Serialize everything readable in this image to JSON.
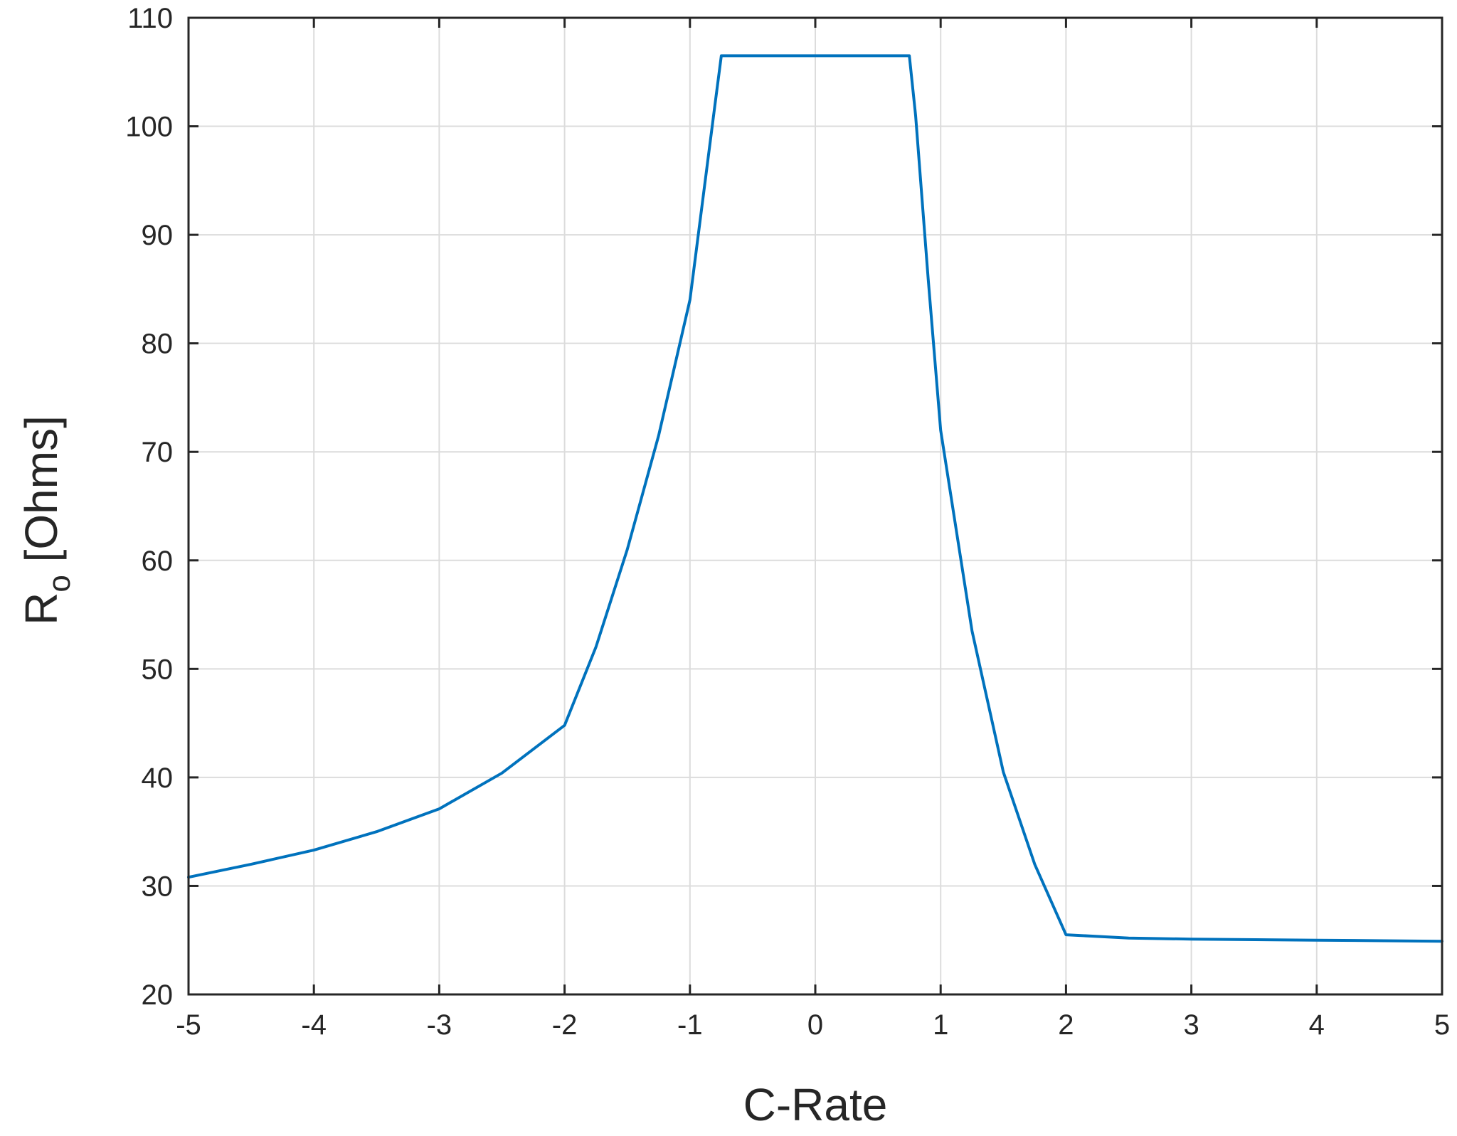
{
  "chart_data": {
    "type": "line",
    "title": "",
    "xlabel": "C-Rate",
    "ylabel": {
      "main": "R",
      "subscript": "o",
      "units": "[Ohms]"
    },
    "xlim": [
      -5,
      5
    ],
    "ylim": [
      20,
      110
    ],
    "xticks": [
      "-5",
      "-4",
      "-3",
      "-2",
      "-1",
      "0",
      "1",
      "2",
      "3",
      "4",
      "5"
    ],
    "yticks": [
      "20",
      "30",
      "40",
      "50",
      "60",
      "70",
      "80",
      "90",
      "100",
      "110"
    ],
    "grid": true,
    "series": [
      {
        "color": "#0072BD",
        "x": [
          -5,
          -4.5,
          -4,
          -3.5,
          -3,
          -2.5,
          -2,
          -1.75,
          -1.5,
          -1.25,
          -1,
          -0.9,
          -0.8,
          -0.75,
          0,
          0.75,
          0.8,
          0.9,
          1,
          1.25,
          1.5,
          1.75,
          2,
          2.5,
          3,
          4,
          5
        ],
        "y": [
          30.8,
          32.0,
          33.3,
          35.0,
          37.1,
          40.4,
          44.8,
          52.0,
          61.0,
          71.5,
          84.0,
          93.0,
          102.0,
          106.5,
          106.5,
          106.5,
          101.0,
          86.0,
          72.0,
          53.5,
          40.5,
          32.0,
          25.5,
          25.2,
          25.1,
          25.0,
          24.9
        ]
      }
    ]
  }
}
